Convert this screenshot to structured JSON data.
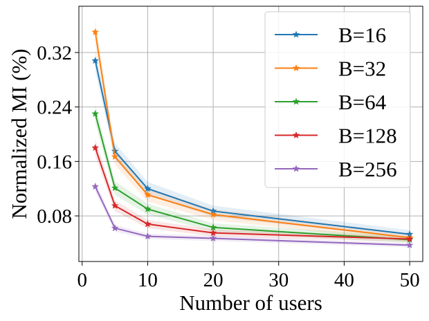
{
  "chart_data": {
    "type": "line",
    "title": "",
    "xlabel": "Number of users",
    "ylabel": "Normalized MI (%)",
    "xlim": [
      -0.5,
      52
    ],
    "ylim": [
      0.013,
      0.388
    ],
    "xticks": [
      0,
      10,
      20,
      30,
      40,
      50
    ],
    "xtick_labels": [
      "0",
      "10",
      "20",
      "30",
      "40",
      "50"
    ],
    "yticks": [
      0.08,
      0.16,
      0.24,
      0.32
    ],
    "ytick_labels": [
      "0.08",
      "0.16",
      "0.24",
      "0.32"
    ],
    "grid": true,
    "legend_position": "top-right",
    "marker": "star",
    "x": [
      2,
      5,
      10,
      20,
      50
    ],
    "series": [
      {
        "name": "B=16",
        "color": "#1f77b4",
        "values": [
          0.308,
          0.175,
          0.12,
          0.087,
          0.053
        ],
        "band": [
          0.015,
          0.012,
          0.01,
          0.008,
          0.006
        ]
      },
      {
        "name": "B=32",
        "color": "#ff7f0e",
        "values": [
          0.35,
          0.167,
          0.111,
          0.082,
          0.048
        ],
        "band": [
          0.018,
          0.012,
          0.01,
          0.008,
          0.006
        ]
      },
      {
        "name": "B=64",
        "color": "#2ca02c",
        "values": [
          0.23,
          0.121,
          0.09,
          0.063,
          0.045
        ],
        "band": [
          0.014,
          0.01,
          0.008,
          0.006,
          0.005
        ]
      },
      {
        "name": "B=128",
        "color": "#d62728",
        "values": [
          0.18,
          0.095,
          0.068,
          0.055,
          0.046
        ],
        "band": [
          0.012,
          0.008,
          0.006,
          0.005,
          0.004
        ]
      },
      {
        "name": "B=256",
        "color": "#9467bd",
        "values": [
          0.123,
          0.062,
          0.05,
          0.047,
          0.037
        ],
        "band": [
          0.008,
          0.005,
          0.004,
          0.004,
          0.003
        ]
      }
    ]
  }
}
